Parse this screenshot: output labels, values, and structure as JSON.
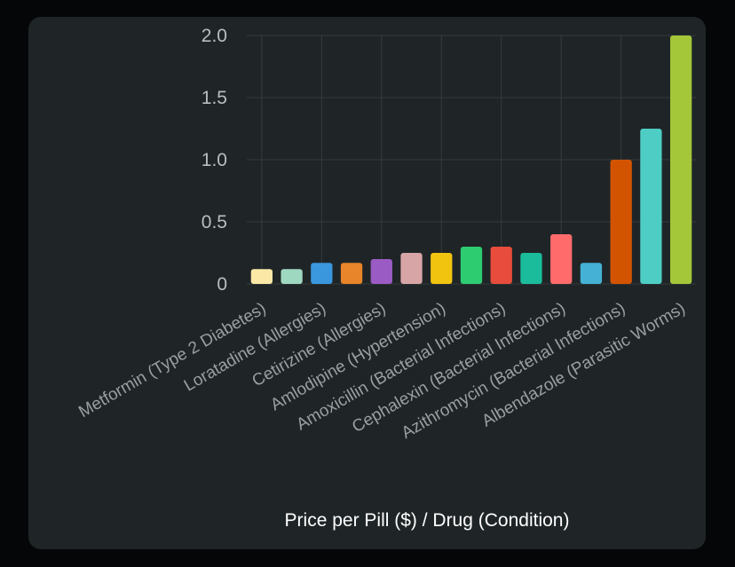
{
  "chart_data": {
    "type": "bar",
    "title": "",
    "xlabel": "Price per Pill ($) / Drug (Condition)",
    "ylabel": "",
    "ylim": [
      0,
      2.0
    ],
    "yticks": [
      "0",
      "0.5",
      "1.0",
      "1.5",
      "2.0"
    ],
    "grid": true,
    "legend": "none",
    "categories": [
      "Metformin (Type 2 Diabetes)",
      "",
      "Loratadine (Allergies)",
      "",
      "Cetirizine (Allergies)",
      "",
      "Amlodipine (Hypertension)",
      "",
      "Amoxicillin (Bacterial Infections)",
      "",
      "Cephalexin (Bacterial Infections)",
      "",
      "Azithromycin (Bacterial Infections)",
      "",
      "Albendazole (Parasitic Worms)"
    ],
    "values": [
      0.12,
      0.12,
      0.17,
      0.17,
      0.2,
      0.25,
      0.25,
      0.3,
      0.3,
      0.25,
      0.4,
      0.17,
      1.0,
      1.25,
      2.0
    ],
    "colors": [
      "#fbe8a6",
      "#9fd8c0",
      "#3a97dd",
      "#e8842a",
      "#9b5bc4",
      "#d8a5a7",
      "#f1c40f",
      "#2ecc71",
      "#e74c3c",
      "#1abc9c",
      "#ff6b6b",
      "#45b1d4",
      "#d35400",
      "#4ecdc4",
      "#a4c639"
    ]
  }
}
